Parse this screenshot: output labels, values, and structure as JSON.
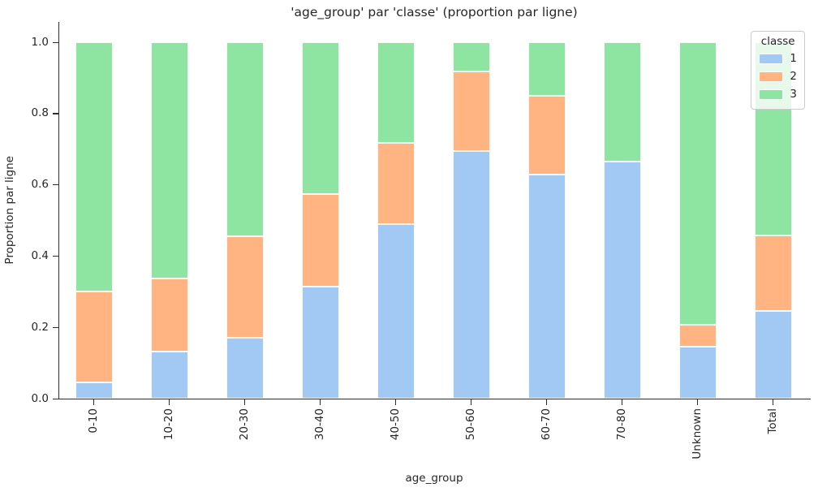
{
  "title": "'age_group' par 'classe' (proportion par ligne)",
  "xlabel": "age_group",
  "ylabel": "Proportion par ligne",
  "legend": {
    "title": "classe",
    "entries": [
      "1",
      "2",
      "3"
    ]
  },
  "colors": {
    "class1": "#a1c9f4",
    "class2": "#ffb482",
    "class3": "#8de5a1",
    "text": "#262626",
    "spine": "#2e2e2e",
    "legend_border": "#cccccc"
  },
  "chart_data": {
    "type": "bar",
    "stacked": true,
    "normalized": true,
    "title": "'age_group' par 'classe' (proportion par ligne)",
    "xlabel": "age_group",
    "ylabel": "Proportion par ligne",
    "categories": [
      "0-10",
      "10-20",
      "20-30",
      "30-40",
      "40-50",
      "50-60",
      "60-70",
      "70-80",
      "Unknown",
      "Total"
    ],
    "series": [
      {
        "name": "1",
        "color": "#a1c9f4",
        "values": [
          0.046,
          0.133,
          0.17,
          0.314,
          0.49,
          0.694,
          0.629,
          0.665,
          0.146,
          0.246
        ]
      },
      {
        "name": "2",
        "color": "#ffb482",
        "values": [
          0.255,
          0.205,
          0.285,
          0.26,
          0.228,
          0.225,
          0.22,
          0.0,
          0.062,
          0.212
        ]
      },
      {
        "name": "3",
        "color": "#8de5a1",
        "values": [
          0.699,
          0.662,
          0.545,
          0.426,
          0.282,
          0.081,
          0.151,
          0.335,
          0.792,
          0.542
        ]
      }
    ],
    "ylim": [
      0.0,
      1.0
    ],
    "yticks": [
      "0.0",
      "0.2",
      "0.4",
      "0.6",
      "0.8",
      "1.0"
    ],
    "grid": false,
    "legend_title": "classe",
    "legend_position": "upper right",
    "xtick_rotation": 90
  }
}
